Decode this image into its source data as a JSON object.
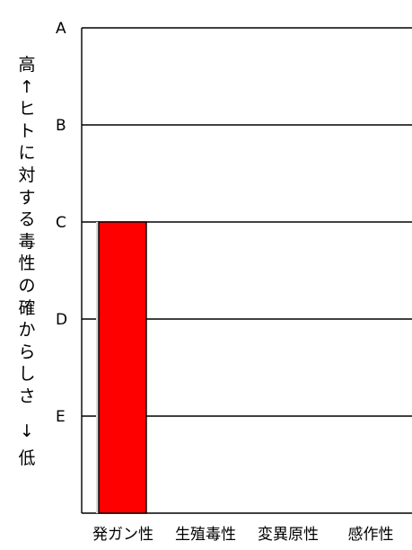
{
  "chart_data": {
    "type": "bar",
    "categories": [
      "発ガン性",
      "生殖毒性",
      "変異原性",
      "感作性"
    ],
    "values": [
      "C",
      null,
      null,
      null
    ],
    "y_levels": [
      "A",
      "B",
      "C",
      "D",
      "E"
    ],
    "ylabel_top": "高",
    "ylabel_up_arrow": "↑",
    "ylabel_text": "ヒトに対する毒性の確からしさ",
    "ylabel_down_arrow": "↓",
    "ylabel_bottom": "低",
    "bar_color": "#ff0000",
    "grid": true
  }
}
